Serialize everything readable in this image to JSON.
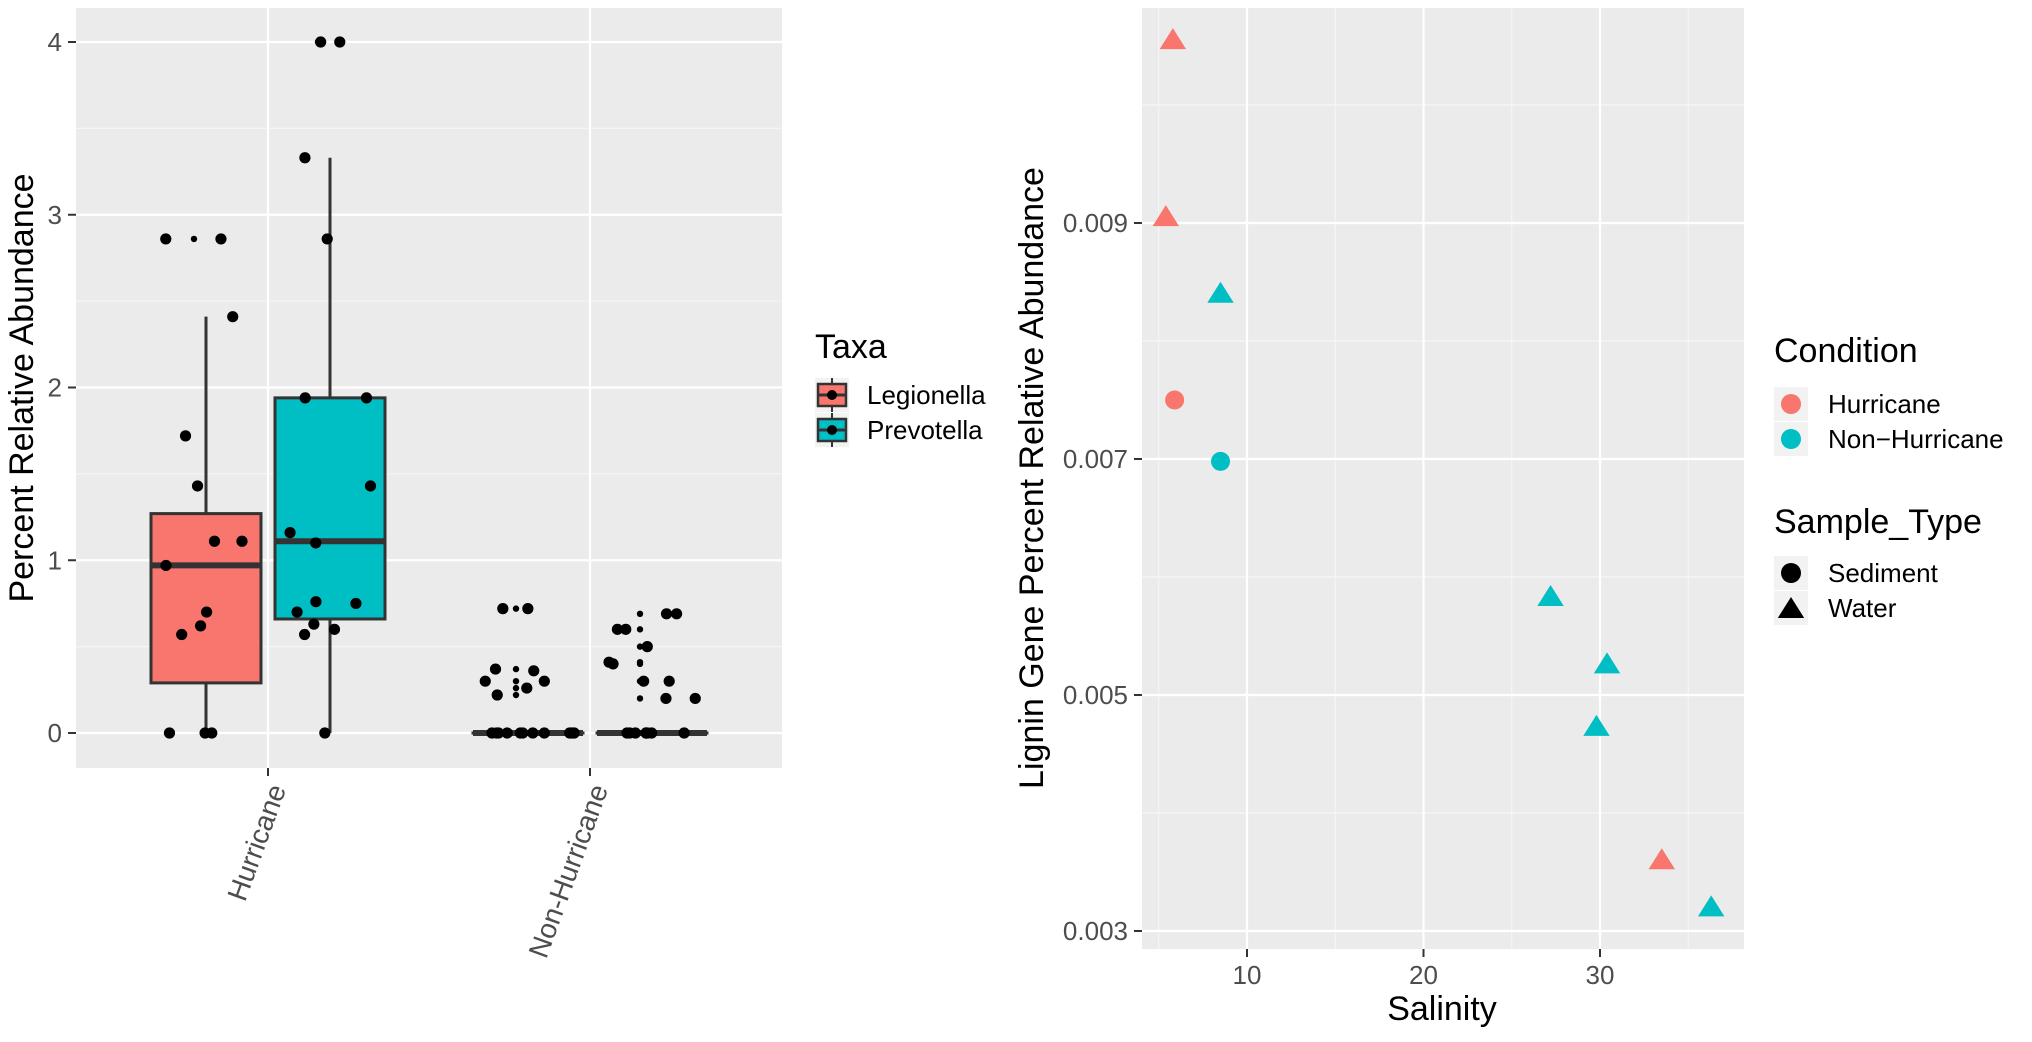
{
  "chart_data": [
    {
      "type": "box",
      "xlabel": "",
      "ylabel": "Percent Relative Abundance",
      "ylim": [
        -0.2,
        4.2
      ],
      "y_ticks": [
        "0",
        "1",
        "2",
        "3",
        "4"
      ],
      "categories": [
        "Hurricane",
        "Non-Hurricane"
      ],
      "legend": {
        "title": "Taxa",
        "placement": "right",
        "entries": [
          "Legionella",
          "Prevotella"
        ]
      },
      "colors": {
        "Legionella": "#F8766D",
        "Prevotella": "#00BFC4"
      },
      "series": [
        {
          "name": "Legionella",
          "boxes": [
            {
              "category": "Hurricane",
              "q1": 0.29,
              "median": 0.97,
              "q3": 1.27,
              "whisker_low": 0.0,
              "whisker_high": 2.41,
              "outliers": [
                2.86
              ],
              "points": [
                0,
                0,
                0,
                0.57,
                0.62,
                0.7,
                0.97,
                1.11,
                1.11,
                1.43,
                1.72,
                2.41,
                2.86,
                2.86
              ]
            },
            {
              "category": "Non-Hurricane",
              "q1": 0,
              "median": 0,
              "q3": 0,
              "whisker_low": 0,
              "whisker_high": 0,
              "outliers": [
                0.72,
                0.3,
                0.37,
                0.26,
                0.22
              ],
              "points": [
                0.72,
                0.72,
                0.3,
                0.37,
                0.36,
                0.26,
                0.22,
                0.3,
                0,
                0,
                0,
                0,
                0,
                0,
                0,
                0,
                0,
                0,
                0,
                0
              ]
            }
          ]
        },
        {
          "name": "Prevotella",
          "boxes": [
            {
              "category": "Hurricane",
              "q1": 0.66,
              "median": 1.11,
              "q3": 1.94,
              "whisker_low": 0.0,
              "whisker_high": 3.33,
              "outliers": [
                4.0
              ],
              "points": [
                0,
                0.57,
                0.6,
                0.63,
                0.7,
                0.75,
                0.76,
                1.1,
                1.16,
                1.43,
                1.94,
                1.94,
                2.86,
                3.33,
                4.0,
                4.0
              ]
            },
            {
              "category": "Non-Hurricane",
              "q1": 0,
              "median": 0,
              "q3": 0,
              "whisker_low": 0,
              "whisker_high": 0,
              "outliers": [
                0.69,
                0.6,
                0.5,
                0.41,
                0.4,
                0.3,
                0.2
              ],
              "points": [
                0.69,
                0.69,
                0.6,
                0.6,
                0.5,
                0.4,
                0.41,
                0.3,
                0.3,
                0.2,
                0.2,
                0,
                0,
                0,
                0,
                0,
                0,
                0,
                0,
                0
              ]
            }
          ]
        }
      ]
    },
    {
      "type": "scatter",
      "xlabel": "Salinity",
      "ylabel": "Lignin Gene Percent Relative Abundance",
      "xlim": [
        3.5,
        38
      ],
      "ylim": [
        0.0029,
        0.0108
      ],
      "x_ticks": [
        "10",
        "20",
        "30"
      ],
      "y_ticks": [
        "0.003",
        "0.005",
        "0.007",
        "0.009"
      ],
      "legend": [
        {
          "title": "Condition",
          "placement": "right",
          "entries": [
            "Hurricane",
            "Non−Hurricane"
          ]
        },
        {
          "title": "Sample_Type",
          "placement": "right",
          "entries": [
            "Sediment",
            "Water"
          ]
        }
      ],
      "colors": {
        "Hurricane": "#F8766D",
        "Non-Hurricane": "#00BFC4"
      },
      "points": [
        {
          "x": 5.8,
          "y": 0.01055,
          "condition": "Hurricane",
          "sample_type": "Water"
        },
        {
          "x": 5.4,
          "y": 0.00905,
          "condition": "Hurricane",
          "sample_type": "Water"
        },
        {
          "x": 8.5,
          "y": 0.0084,
          "condition": "Non-Hurricane",
          "sample_type": "Water"
        },
        {
          "x": 5.9,
          "y": 0.0075,
          "condition": "Hurricane",
          "sample_type": "Sediment"
        },
        {
          "x": 8.5,
          "y": 0.00698,
          "condition": "Non-Hurricane",
          "sample_type": "Sediment"
        },
        {
          "x": 27.2,
          "y": 0.00583,
          "condition": "Non-Hurricane",
          "sample_type": "Water"
        },
        {
          "x": 30.4,
          "y": 0.00526,
          "condition": "Non-Hurricane",
          "sample_type": "Water"
        },
        {
          "x": 29.8,
          "y": 0.00473,
          "condition": "Non-Hurricane",
          "sample_type": "Water"
        },
        {
          "x": 33.5,
          "y": 0.0036,
          "condition": "Hurricane",
          "sample_type": "Water"
        },
        {
          "x": 36.3,
          "y": 0.0032,
          "condition": "Non-Hurricane",
          "sample_type": "Water"
        }
      ]
    }
  ]
}
